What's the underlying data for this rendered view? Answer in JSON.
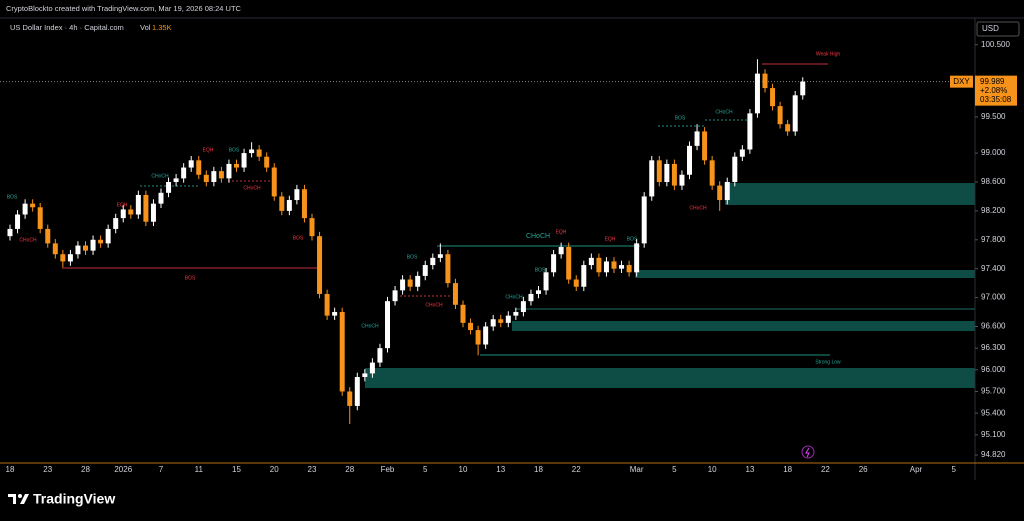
{
  "header": {
    "credit": "CryptoBlockto created with TradingView.com, Mar 19, 2026 08:24 UTC",
    "logo": "TradingView"
  },
  "chart_data": {
    "type": "candlestick",
    "title": "US Dollar Index · 4h · Capital.com",
    "volume_label": "Vol",
    "volume": "1.35K",
    "currency": "USD",
    "symbol": "DXY",
    "last_price": 99.989,
    "change": "+2.08%",
    "countdown": "03:35:08",
    "up_color": "#ffffff",
    "down_color": "#f7931a",
    "categories": [
      "18",
      null,
      null,
      null,
      null,
      "23",
      null,
      null,
      null,
      null,
      "28",
      null,
      null,
      null,
      null,
      "2026",
      null,
      null,
      null,
      null,
      "7",
      null,
      null,
      null,
      null,
      "11",
      null,
      null,
      null,
      null,
      "15",
      null,
      null,
      null,
      null,
      "20",
      null,
      null,
      null,
      null,
      "23",
      null,
      null,
      null,
      null,
      "28",
      null,
      null,
      null,
      null,
      "Feb",
      null,
      null,
      null,
      null,
      "5",
      null,
      null,
      null,
      null,
      "10",
      null,
      null,
      null,
      null,
      "13",
      null,
      null,
      null,
      null,
      "18",
      null,
      null,
      null,
      null,
      "22",
      null,
      null,
      null,
      null,
      null,
      null,
      null,
      "Mar",
      null,
      null,
      null,
      null,
      "5",
      null,
      null,
      null,
      null,
      "10",
      null,
      null,
      null,
      null,
      "13",
      null,
      null,
      null,
      null,
      "18",
      null,
      null,
      null,
      null,
      "22",
      null,
      null,
      null,
      null,
      "26",
      null,
      null,
      null,
      null,
      null,
      null,
      "Apr",
      null,
      null,
      null,
      null,
      "5",
      null,
      null
    ],
    "open": [
      97.85,
      97.95,
      98.15,
      98.3,
      98.25,
      97.95,
      97.75,
      97.6,
      97.5,
      97.6,
      97.72,
      97.65,
      97.8,
      97.75,
      97.95,
      98.1,
      98.22,
      98.15,
      98.42,
      98.05,
      98.3,
      98.45,
      98.6,
      98.65,
      98.8,
      98.9,
      98.7,
      98.6,
      98.75,
      98.65,
      98.85,
      98.8,
      99.0,
      99.05,
      98.95,
      98.8,
      98.4,
      98.2,
      98.35,
      98.5,
      98.1,
      97.85,
      97.05,
      96.75,
      96.8,
      95.7,
      95.5,
      95.9,
      95.95,
      96.1,
      96.3,
      96.95,
      97.1,
      97.25,
      97.15,
      97.3,
      97.45,
      97.55,
      97.6,
      97.2,
      96.9,
      96.65,
      96.55,
      96.35,
      96.6,
      96.7,
      96.65,
      96.75,
      96.8,
      96.95,
      97.05,
      97.1,
      97.35,
      97.6,
      97.7,
      97.25,
      97.15,
      97.45,
      97.55,
      97.35,
      97.5,
      97.4,
      97.45,
      97.35,
      97.75,
      98.4,
      98.9,
      98.6,
      98.85,
      98.55,
      98.7,
      99.1,
      99.3,
      98.9,
      98.55,
      98.35,
      98.6,
      98.95,
      99.05,
      99.55,
      100.1,
      99.9,
      99.65,
      99.4,
      99.3,
      99.8,
      null,
      null,
      null,
      null,
      null,
      null,
      null,
      null,
      null,
      null,
      null,
      null,
      null,
      null,
      null,
      null,
      null,
      null,
      null,
      null,
      null,
      null
    ],
    "high": [
      98.01,
      98.21,
      98.36,
      98.36,
      98.31,
      98.01,
      97.81,
      97.66,
      97.66,
      97.78,
      97.78,
      97.86,
      97.86,
      98.01,
      98.16,
      98.28,
      98.28,
      98.48,
      98.48,
      98.36,
      98.51,
      98.66,
      98.71,
      98.86,
      98.96,
      98.96,
      98.76,
      98.81,
      98.81,
      98.91,
      98.91,
      99.06,
      99.15,
      99.11,
      99.01,
      98.86,
      98.46,
      98.41,
      98.56,
      98.56,
      98.16,
      97.91,
      97.11,
      96.86,
      96.86,
      95.76,
      95.96,
      96.01,
      96.16,
      96.36,
      97.01,
      97.16,
      97.31,
      97.31,
      97.36,
      97.51,
      97.61,
      97.75,
      97.66,
      97.26,
      96.96,
      96.71,
      96.61,
      96.66,
      96.76,
      96.76,
      96.81,
      96.86,
      97.01,
      97.11,
      97.16,
      97.41,
      97.66,
      97.76,
      97.76,
      97.31,
      97.51,
      97.61,
      97.61,
      97.56,
      97.56,
      97.51,
      97.51,
      97.81,
      98.46,
      98.96,
      98.96,
      98.91,
      98.91,
      98.76,
      99.16,
      99.4,
      99.36,
      98.96,
      98.61,
      98.66,
      99.01,
      99.11,
      99.61,
      100.3,
      100.16,
      99.96,
      99.71,
      99.46,
      99.86,
      100.05,
      null,
      null,
      null,
      null,
      null,
      null,
      null,
      null,
      null,
      null,
      null,
      null,
      null,
      null,
      null,
      null,
      null,
      null,
      null,
      null,
      null,
      null
    ],
    "low": [
      97.79,
      97.89,
      98.09,
      98.19,
      97.89,
      97.69,
      97.54,
      97.42,
      97.44,
      97.54,
      97.59,
      97.59,
      97.69,
      97.69,
      97.89,
      98.04,
      98.09,
      98.09,
      97.99,
      97.99,
      98.24,
      98.39,
      98.54,
      98.59,
      98.74,
      98.64,
      98.54,
      98.54,
      98.59,
      98.59,
      98.74,
      98.74,
      98.94,
      98.89,
      98.74,
      98.34,
      98.14,
      98.14,
      98.29,
      98.04,
      97.79,
      96.99,
      96.69,
      96.69,
      95.64,
      95.25,
      95.44,
      95.84,
      95.89,
      96.04,
      96.24,
      96.89,
      97.04,
      97.09,
      97.09,
      97.24,
      97.39,
      97.49,
      97.14,
      96.84,
      96.59,
      96.49,
      96.2,
      96.29,
      96.54,
      96.59,
      96.59,
      96.69,
      96.74,
      96.89,
      96.99,
      97.04,
      97.29,
      97.54,
      97.19,
      97.09,
      97.09,
      97.39,
      97.29,
      97.29,
      97.34,
      97.34,
      97.29,
      97.29,
      97.69,
      98.34,
      98.54,
      98.54,
      98.49,
      98.49,
      98.64,
      99.04,
      98.84,
      98.49,
      98.2,
      98.29,
      98.54,
      98.89,
      98.99,
      99.49,
      99.84,
      99.59,
      99.34,
      99.24,
      99.24,
      99.74,
      null,
      null,
      null,
      null,
      null,
      null,
      null,
      null,
      null,
      null,
      null,
      null,
      null,
      null,
      null,
      null,
      null,
      null,
      null,
      null,
      null,
      null
    ],
    "close": [
      97.95,
      98.15,
      98.3,
      98.25,
      97.95,
      97.75,
      97.6,
      97.5,
      97.6,
      97.72,
      97.65,
      97.8,
      97.75,
      97.95,
      98.1,
      98.22,
      98.15,
      98.42,
      98.05,
      98.3,
      98.45,
      98.6,
      98.65,
      98.8,
      98.9,
      98.7,
      98.6,
      98.75,
      98.65,
      98.85,
      98.8,
      99.0,
      99.05,
      98.95,
      98.8,
      98.4,
      98.2,
      98.35,
      98.5,
      98.1,
      97.85,
      97.05,
      96.75,
      96.8,
      95.7,
      95.5,
      95.9,
      95.95,
      96.1,
      96.3,
      96.95,
      97.1,
      97.25,
      97.15,
      97.3,
      97.45,
      97.55,
      97.6,
      97.2,
      96.9,
      96.65,
      96.55,
      96.35,
      96.6,
      96.7,
      96.65,
      96.75,
      96.8,
      96.95,
      97.05,
      97.1,
      97.35,
      97.6,
      97.7,
      97.25,
      97.15,
      97.45,
      97.55,
      97.35,
      97.5,
      97.4,
      97.45,
      97.35,
      97.75,
      98.4,
      98.9,
      98.6,
      98.85,
      98.55,
      98.7,
      99.1,
      99.3,
      98.9,
      98.55,
      98.35,
      98.6,
      98.95,
      99.05,
      99.55,
      100.1,
      99.9,
      99.65,
      99.4,
      99.3,
      99.8,
      99.989,
      null,
      null,
      null,
      null,
      null,
      null,
      null,
      null,
      null,
      null,
      null,
      null,
      null,
      null,
      null,
      null,
      null,
      null,
      null,
      null,
      null,
      null
    ],
    "ylim": [
      94.71,
      100.87
    ],
    "yticks": [
      {
        "value": 100.5,
        "label": "100.500"
      },
      {
        "value": 99.5,
        "label": "99.500"
      },
      {
        "value": 99.0,
        "label": "99.000"
      },
      {
        "value": 98.6,
        "label": "98.600"
      },
      {
        "value": 98.2,
        "label": "98.200"
      },
      {
        "value": 97.8,
        "label": "97.800"
      },
      {
        "value": 97.4,
        "label": "97.400"
      },
      {
        "value": 97.0,
        "label": "97.000"
      },
      {
        "value": 96.6,
        "label": "96.600"
      },
      {
        "value": 96.3,
        "label": "96.300"
      },
      {
        "value": 96.0,
        "label": "96.000"
      },
      {
        "value": 95.7,
        "label": "95.700"
      },
      {
        "value": 95.4,
        "label": "95.400"
      },
      {
        "value": 95.1,
        "label": "95.100"
      },
      {
        "value": 94.82,
        "label": "94.820"
      }
    ],
    "annotations": [
      "BOS",
      "CHoCH",
      "EQH",
      "CHoCH",
      "EQH",
      "BOS",
      "CHoCH",
      "BOS",
      "BOS",
      "CHoCH",
      "BOS",
      "CHoCH",
      "CHoCH",
      "EQH",
      "CHoCH",
      "BOS",
      "EQH",
      "BOS",
      "BOS",
      "CHoCH",
      "CHoCH",
      "Weak High",
      "Strong Low"
    ]
  }
}
